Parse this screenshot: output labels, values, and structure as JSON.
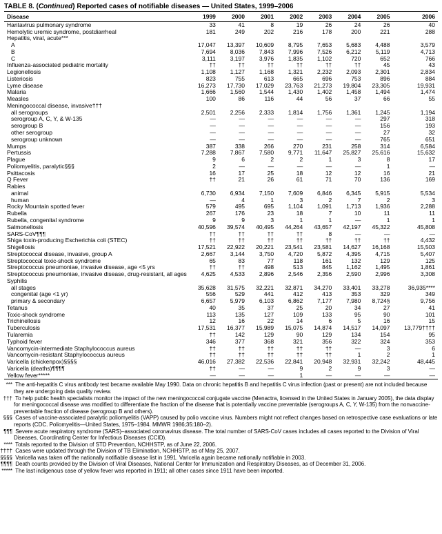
{
  "title_prefix": "TABLE 8. (",
  "title_cont": "Continued",
  "title_suffix": ") Reported cases of notifiable diseases — United States, 1999–2006",
  "columns": [
    "Disease",
    "1999",
    "2000",
    "2001",
    "2002",
    "2003",
    "2004",
    "2005",
    "2006"
  ],
  "rows": [
    {
      "l": "Hantavirus pulmonary syndrome",
      "i": 0,
      "v": [
        "33",
        "41",
        "8",
        "19",
        "26",
        "24",
        "26",
        "40"
      ]
    },
    {
      "l": "Hemolytic uremic syndrome, postdiarrheal",
      "i": 0,
      "v": [
        "181",
        "249",
        "202",
        "216",
        "178",
        "200",
        "221",
        "288"
      ]
    },
    {
      "l": "Hepatitis, viral, acute***",
      "i": 0,
      "v": [
        "",
        "",
        "",
        "",
        "",
        "",
        "",
        ""
      ]
    },
    {
      "l": "A",
      "i": 1,
      "v": [
        "17,047",
        "13,397",
        "10,609",
        "8,795",
        "7,653",
        "5,683",
        "4,488",
        "3,579"
      ]
    },
    {
      "l": "B",
      "i": 1,
      "v": [
        "7,694",
        "8,036",
        "7,843",
        "7,996",
        "7,526",
        "6,212",
        "5,119",
        "4,713"
      ]
    },
    {
      "l": "C",
      "i": 1,
      "v": [
        "3,111",
        "3,197",
        "3,976",
        "1,835",
        "1,102",
        "720",
        "652",
        "766"
      ]
    },
    {
      "l": "Influenza-associated pediatric mortality",
      "i": 0,
      "v": [
        "††",
        "††",
        "††",
        "††",
        "††",
        "††",
        "45",
        "43"
      ]
    },
    {
      "l": "Legionellosis",
      "i": 0,
      "v": [
        "1,108",
        "1,127",
        "1,168",
        "1,321",
        "2,232",
        "2,093",
        "2,301",
        "2,834"
      ]
    },
    {
      "l": "Listeriosis",
      "i": 0,
      "v": [
        "823",
        "755",
        "613",
        "665",
        "696",
        "753",
        "896",
        "884"
      ]
    },
    {
      "l": "Lyme disease",
      "i": 0,
      "v": [
        "16,273",
        "17,730",
        "17,029",
        "23,763",
        "21,273",
        "19,804",
        "23,305",
        "19,931"
      ]
    },
    {
      "l": "Malaria",
      "i": 0,
      "v": [
        "1,666",
        "1,560",
        "1,544",
        "1,430",
        "1,402",
        "1,458",
        "1,494",
        "1,474"
      ]
    },
    {
      "l": "Measles",
      "i": 0,
      "v": [
        "100",
        "86",
        "116",
        "44",
        "56",
        "37",
        "66",
        "55"
      ]
    },
    {
      "l": "Meningococcal disease, invasive†††",
      "i": 0,
      "v": [
        "",
        "",
        "",
        "",
        "",
        "",
        "",
        ""
      ]
    },
    {
      "l": "all serogroups",
      "i": 1,
      "v": [
        "2,501",
        "2,256",
        "2,333",
        "1,814",
        "1,756",
        "1,361",
        "1,245",
        "1,194"
      ]
    },
    {
      "l": "serogroup A, C, Y, & W-135",
      "i": 1,
      "v": [
        "—",
        "—",
        "—",
        "—",
        "—",
        "—",
        "297",
        "318"
      ]
    },
    {
      "l": "serogroup B",
      "i": 1,
      "v": [
        "—",
        "—",
        "—",
        "—",
        "—",
        "—",
        "156",
        "193"
      ]
    },
    {
      "l": "other serogroup",
      "i": 1,
      "v": [
        "—",
        "—",
        "—",
        "—",
        "—",
        "—",
        "27",
        "32"
      ]
    },
    {
      "l": "serogroup unknown",
      "i": 1,
      "v": [
        "—",
        "—",
        "—",
        "—",
        "—",
        "—",
        "765",
        "651"
      ]
    },
    {
      "l": "Mumps",
      "i": 0,
      "v": [
        "387",
        "338",
        "266",
        "270",
        "231",
        "258",
        "314",
        "6,584"
      ]
    },
    {
      "l": "Pertussis",
      "i": 0,
      "v": [
        "7,288",
        "7,867",
        "7,580",
        "9,771",
        "11,647",
        "25,827",
        "25,616",
        "15,632"
      ]
    },
    {
      "l": "Plague",
      "i": 0,
      "v": [
        "9",
        "6",
        "2",
        "2",
        "1",
        "3",
        "8",
        "17"
      ]
    },
    {
      "l": "Poliomyelitis, paralytic§§§",
      "i": 0,
      "v": [
        "2",
        "—",
        "—",
        "—",
        "—",
        "—",
        "1",
        "—"
      ]
    },
    {
      "l": "Psittacosis",
      "i": 0,
      "v": [
        "16",
        "17",
        "25",
        "18",
        "12",
        "12",
        "16",
        "21"
      ]
    },
    {
      "l": "Q Fever",
      "i": 0,
      "v": [
        "††",
        "21",
        "26",
        "61",
        "71",
        "70",
        "136",
        "169"
      ]
    },
    {
      "l": "Rabies",
      "i": 0,
      "v": [
        "",
        "",
        "",
        "",
        "",
        "",
        "",
        ""
      ]
    },
    {
      "l": "animal",
      "i": 1,
      "v": [
        "6,730",
        "6,934",
        "7,150",
        "7,609",
        "6,846",
        "6,345",
        "5,915",
        "5,534"
      ]
    },
    {
      "l": "human",
      "i": 1,
      "v": [
        "—",
        "4",
        "1",
        "3",
        "2",
        "7",
        "2",
        "3"
      ]
    },
    {
      "l": "Rocky Mountain spotted fever",
      "i": 0,
      "v": [
        "579",
        "495",
        "695",
        "1,104",
        "1,091",
        "1,713",
        "1,936",
        "2,288"
      ]
    },
    {
      "l": "Rubella",
      "i": 0,
      "v": [
        "267",
        "176",
        "23",
        "18",
        "7",
        "10",
        "11",
        "11"
      ]
    },
    {
      "l": "Rubella, congenital syndrome",
      "i": 0,
      "v": [
        "9",
        "9",
        "3",
        "1",
        "1",
        "—",
        "1",
        "1"
      ]
    },
    {
      "l": "Salmonellosis",
      "i": 0,
      "v": [
        "40,596",
        "39,574",
        "40,495",
        "44,264",
        "43,657",
        "42,197",
        "45,322",
        "45,808"
      ]
    },
    {
      "l": "SARS-CoV¶¶¶",
      "i": 0,
      "v": [
        "††",
        "††",
        "††",
        "††",
        "8",
        "—",
        "—",
        "—"
      ]
    },
    {
      "l": "Shiga toxin-producing Escherichia coli (STEC)",
      "i": 0,
      "v": [
        "††",
        "††",
        "††",
        "††",
        "††",
        "††",
        "††",
        "4,432"
      ]
    },
    {
      "l": "Shigellosis",
      "i": 0,
      "v": [
        "17,521",
        "22,922",
        "20,221",
        "23,541",
        "23,581",
        "14,627",
        "16,168",
        "15,503"
      ]
    },
    {
      "l": "Streptococcal disease, invasive, group A",
      "i": 0,
      "v": [
        "2,667",
        "3,144",
        "3,750",
        "4,720",
        "5,872",
        "4,395",
        "4,715",
        "5,407"
      ]
    },
    {
      "l": "Streptococcal toxic-shock syndrome",
      "i": 0,
      "v": [
        "65",
        "83",
        "77",
        "118",
        "161",
        "132",
        "129",
        "125"
      ]
    },
    {
      "l": "Streptococcus pneumoniae, invasive disease, age <5 yrs",
      "i": 0,
      "v": [
        "††",
        "††",
        "498",
        "513",
        "845",
        "1,162",
        "1,495",
        "1,861"
      ]
    },
    {
      "l": "Streptococcus pneumoniae, invasive disease, drug-resistant, all ages",
      "i": 0,
      "v": [
        "4,625",
        "4,533",
        "2,896",
        "2,546",
        "2,356",
        "2,590",
        "2,996",
        "3,308"
      ]
    },
    {
      "l": "Syphilis",
      "i": 0,
      "v": [
        "",
        "",
        "",
        "",
        "",
        "",
        "",
        ""
      ]
    },
    {
      "l": "all stages",
      "i": 1,
      "v": [
        "35,628",
        "31,575",
        "32,221",
        "32,871",
        "34,270",
        "33,401",
        "33,278",
        "36,935****"
      ]
    },
    {
      "l": "congenital (age <1 yr)",
      "i": 1,
      "v": [
        "556",
        "529",
        "441",
        "412",
        "413",
        "353",
        "329",
        "349"
      ]
    },
    {
      "l": "primary & secondary",
      "i": 1,
      "v": [
        "6,657",
        "5,979",
        "6,103",
        "6,862",
        "7,177",
        "7,980",
        "8,724§",
        "9,756"
      ]
    },
    {
      "l": "Tetanus",
      "i": 0,
      "v": [
        "40",
        "35",
        "37",
        "25",
        "20",
        "34",
        "27",
        "41"
      ]
    },
    {
      "l": "Toxic-shock syndrome",
      "i": 0,
      "v": [
        "113",
        "135",
        "127",
        "109",
        "133",
        "95",
        "90",
        "101"
      ]
    },
    {
      "l": "Trichinellosis",
      "i": 0,
      "v": [
        "12",
        "16",
        "22",
        "14",
        "6",
        "5",
        "16",
        "15"
      ]
    },
    {
      "l": "Tuberculosis",
      "i": 0,
      "v": [
        "17,531",
        "16,377",
        "15,989",
        "15,075",
        "14,874",
        "14,517",
        "14,097",
        "13,779††††"
      ]
    },
    {
      "l": "Tularemia",
      "i": 0,
      "v": [
        "††",
        "142",
        "129",
        "90",
        "129",
        "134",
        "154",
        "95"
      ]
    },
    {
      "l": "Typhoid fever",
      "i": 0,
      "v": [
        "346",
        "377",
        "368",
        "321",
        "356",
        "322",
        "324",
        "353"
      ]
    },
    {
      "l": "Vancomycin-intermediate Staphylococcus aureus",
      "i": 0,
      "v": [
        "††",
        "††",
        "††",
        "††",
        "††",
        "—",
        "3",
        "6"
      ]
    },
    {
      "l": "Vancomycin-resistant Staphylococcus aureus",
      "i": 0,
      "v": [
        "††",
        "††",
        "††",
        "††",
        "††",
        "1",
        "2",
        "1"
      ]
    },
    {
      "l": "Varicella (chickenpox)§§§§",
      "i": 0,
      "v": [
        "46,016",
        "27,382",
        "22,536",
        "22,841",
        "20,948",
        "32,931",
        "32,242",
        "48,445"
      ]
    },
    {
      "l": "Varicella (deaths)¶¶¶¶",
      "i": 0,
      "v": [
        "††",
        "—",
        "—",
        "9",
        "2",
        "9",
        "3",
        "—"
      ]
    },
    {
      "l": "Yellow fever*****",
      "i": 0,
      "v": [
        "—",
        "—",
        "—",
        "1",
        "—",
        "—",
        "—",
        "—"
      ]
    }
  ],
  "footnotes": [
    {
      "s": "***",
      "t": "The anti-hepatitis C virus antibody test became available May 1990. Data on chronic hepatitis B and hepatitis C virus infection (past or present) are not included because they are undergoing data quality review."
    },
    {
      "s": "†††",
      "t": "To help public health specialists monitor the impact of the new meningococcal conjugate vaccine (Menactra, licensed in the United States in January 2005), the data display for meningococcal disease was modified to differentiate the fraction of the disease that is potentially vaccine preventable (serogroups A, C, Y, W-135) from the nonvaccine-preventable fraction of disease (serogroup B and others)."
    },
    {
      "s": "§§§",
      "t": "Cases of vaccine-associated paralytic poliomyelitis (VAPP) caused by polio vaccine virus. Numbers might not reflect changes based on retrospective case evaluations or late reports (CDC. Poliomyelitis—United States, 1975–1984. MMWR 1986;35:180–2)."
    },
    {
      "s": "¶¶¶",
      "t": "Severe acute respiratory syndrome (SARS)–associated coronavirus disease. The total number of SARS-CoV cases includes all cases reported to the Division of Viral Diseases, Coordinating Center for Infectious Diseases (CCID)."
    },
    {
      "s": "****",
      "t": "Totals reported to the Division of STD Prevention, NCHHSTP, as of June 22, 2006."
    },
    {
      "s": "††††",
      "t": "Cases were updated through the Division of TB Elimination, NCHHSTP, as of May 25, 2007."
    },
    {
      "s": "§§§§",
      "t": "Varicella was taken off the nationally notifiable disease list in 1991. Varicella again became nationally notifiable in 2003."
    },
    {
      "s": "¶¶¶¶",
      "t": "Death counts provided by the Division of Viral Diseases, National Center for Immunization and Respiratory Diseases, as of December 31, 2006."
    },
    {
      "s": "*****",
      "t": "The last indigenous case of yellow fever was reported in 1911; all other cases since 1911 have been imported."
    }
  ]
}
